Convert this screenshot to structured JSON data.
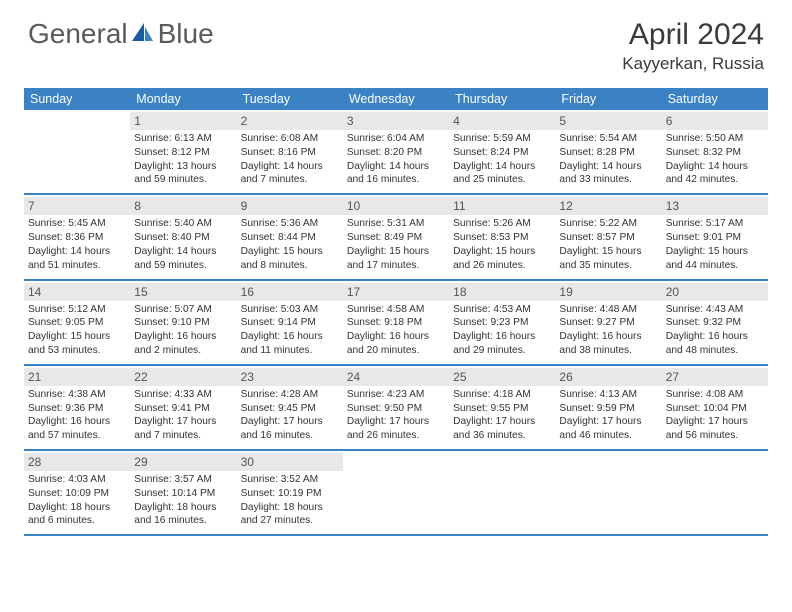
{
  "brand": {
    "part1": "General",
    "part2": "Blue"
  },
  "title": "April 2024",
  "location": "Kayyerkan, Russia",
  "header_bg": "#3b82c4",
  "border_color": "#3b82c4",
  "daynum_bg": "#e8e8e8",
  "weekdays": [
    "Sunday",
    "Monday",
    "Tuesday",
    "Wednesday",
    "Thursday",
    "Friday",
    "Saturday"
  ],
  "weeks": [
    [
      null,
      {
        "n": "1",
        "sr": "6:13 AM",
        "ss": "8:12 PM",
        "dl": "13 hours and 59 minutes."
      },
      {
        "n": "2",
        "sr": "6:08 AM",
        "ss": "8:16 PM",
        "dl": "14 hours and 7 minutes."
      },
      {
        "n": "3",
        "sr": "6:04 AM",
        "ss": "8:20 PM",
        "dl": "14 hours and 16 minutes."
      },
      {
        "n": "4",
        "sr": "5:59 AM",
        "ss": "8:24 PM",
        "dl": "14 hours and 25 minutes."
      },
      {
        "n": "5",
        "sr": "5:54 AM",
        "ss": "8:28 PM",
        "dl": "14 hours and 33 minutes."
      },
      {
        "n": "6",
        "sr": "5:50 AM",
        "ss": "8:32 PM",
        "dl": "14 hours and 42 minutes."
      }
    ],
    [
      {
        "n": "7",
        "sr": "5:45 AM",
        "ss": "8:36 PM",
        "dl": "14 hours and 51 minutes."
      },
      {
        "n": "8",
        "sr": "5:40 AM",
        "ss": "8:40 PM",
        "dl": "14 hours and 59 minutes."
      },
      {
        "n": "9",
        "sr": "5:36 AM",
        "ss": "8:44 PM",
        "dl": "15 hours and 8 minutes."
      },
      {
        "n": "10",
        "sr": "5:31 AM",
        "ss": "8:49 PM",
        "dl": "15 hours and 17 minutes."
      },
      {
        "n": "11",
        "sr": "5:26 AM",
        "ss": "8:53 PM",
        "dl": "15 hours and 26 minutes."
      },
      {
        "n": "12",
        "sr": "5:22 AM",
        "ss": "8:57 PM",
        "dl": "15 hours and 35 minutes."
      },
      {
        "n": "13",
        "sr": "5:17 AM",
        "ss": "9:01 PM",
        "dl": "15 hours and 44 minutes."
      }
    ],
    [
      {
        "n": "14",
        "sr": "5:12 AM",
        "ss": "9:05 PM",
        "dl": "15 hours and 53 minutes."
      },
      {
        "n": "15",
        "sr": "5:07 AM",
        "ss": "9:10 PM",
        "dl": "16 hours and 2 minutes."
      },
      {
        "n": "16",
        "sr": "5:03 AM",
        "ss": "9:14 PM",
        "dl": "16 hours and 11 minutes."
      },
      {
        "n": "17",
        "sr": "4:58 AM",
        "ss": "9:18 PM",
        "dl": "16 hours and 20 minutes."
      },
      {
        "n": "18",
        "sr": "4:53 AM",
        "ss": "9:23 PM",
        "dl": "16 hours and 29 minutes."
      },
      {
        "n": "19",
        "sr": "4:48 AM",
        "ss": "9:27 PM",
        "dl": "16 hours and 38 minutes."
      },
      {
        "n": "20",
        "sr": "4:43 AM",
        "ss": "9:32 PM",
        "dl": "16 hours and 48 minutes."
      }
    ],
    [
      {
        "n": "21",
        "sr": "4:38 AM",
        "ss": "9:36 PM",
        "dl": "16 hours and 57 minutes."
      },
      {
        "n": "22",
        "sr": "4:33 AM",
        "ss": "9:41 PM",
        "dl": "17 hours and 7 minutes."
      },
      {
        "n": "23",
        "sr": "4:28 AM",
        "ss": "9:45 PM",
        "dl": "17 hours and 16 minutes."
      },
      {
        "n": "24",
        "sr": "4:23 AM",
        "ss": "9:50 PM",
        "dl": "17 hours and 26 minutes."
      },
      {
        "n": "25",
        "sr": "4:18 AM",
        "ss": "9:55 PM",
        "dl": "17 hours and 36 minutes."
      },
      {
        "n": "26",
        "sr": "4:13 AM",
        "ss": "9:59 PM",
        "dl": "17 hours and 46 minutes."
      },
      {
        "n": "27",
        "sr": "4:08 AM",
        "ss": "10:04 PM",
        "dl": "17 hours and 56 minutes."
      }
    ],
    [
      {
        "n": "28",
        "sr": "4:03 AM",
        "ss": "10:09 PM",
        "dl": "18 hours and 6 minutes."
      },
      {
        "n": "29",
        "sr": "3:57 AM",
        "ss": "10:14 PM",
        "dl": "18 hours and 16 minutes."
      },
      {
        "n": "30",
        "sr": "3:52 AM",
        "ss": "10:19 PM",
        "dl": "18 hours and 27 minutes."
      },
      null,
      null,
      null,
      null
    ]
  ]
}
